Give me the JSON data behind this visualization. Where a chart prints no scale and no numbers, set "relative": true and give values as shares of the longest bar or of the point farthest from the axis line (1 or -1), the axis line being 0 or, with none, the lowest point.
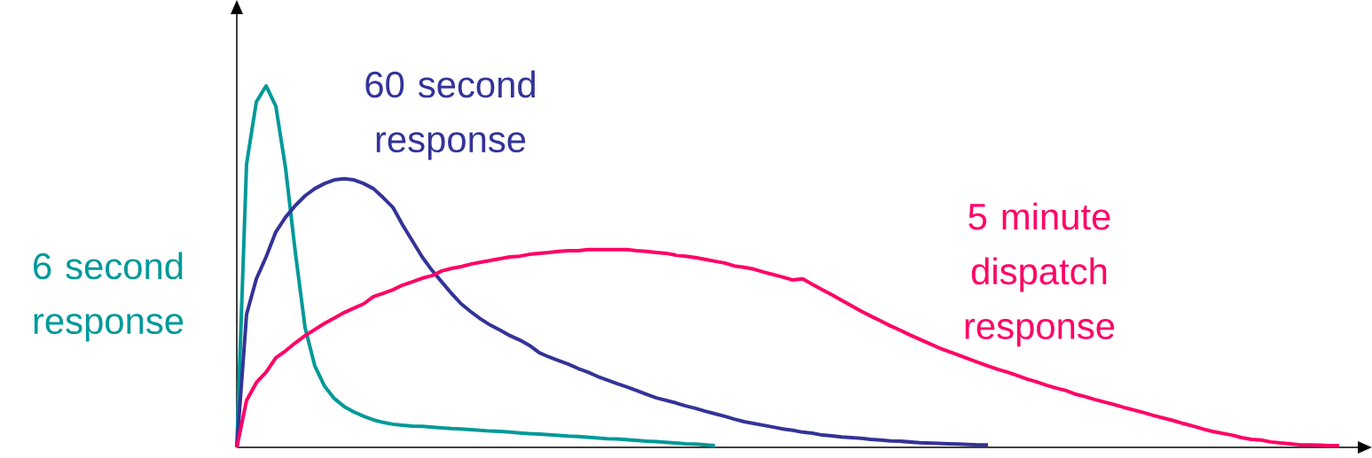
{
  "chart_data": {
    "type": "line",
    "relative": true,
    "categories": [
      null,
      null,
      null,
      null,
      null,
      null,
      null,
      null,
      null,
      null,
      null,
      null,
      null,
      null,
      null,
      null,
      null,
      null,
      null,
      null,
      null,
      null,
      null,
      null,
      null,
      null,
      null,
      null,
      null,
      null,
      null,
      null,
      null,
      null,
      null,
      null,
      null,
      null,
      null,
      null,
      null,
      null,
      null,
      null,
      null,
      null,
      null,
      null,
      null,
      null,
      null,
      null,
      null,
      null,
      null,
      null,
      null,
      null,
      null,
      null,
      null,
      null,
      null,
      null,
      null,
      null,
      null,
      null,
      null,
      null,
      null,
      null,
      null,
      null,
      null,
      null,
      null,
      null,
      null,
      null,
      null,
      null,
      null,
      null,
      null,
      null,
      null,
      null,
      null,
      null,
      null,
      null,
      null,
      null,
      null,
      null,
      null,
      null,
      null,
      null,
      null,
      null,
      null,
      null,
      null,
      null,
      null,
      null,
      null,
      null,
      null,
      null,
      null,
      null
    ],
    "series": [
      {
        "name": "6 second response",
        "color": "#009999",
        "values": [
          0,
          0.784,
          0.956,
          1,
          0.944,
          0.772,
          0.539,
          0.331,
          0.225,
          0.169,
          0.135,
          0.113,
          0.098,
          0.086,
          0.076,
          0.069,
          0.064,
          0.061,
          0.059,
          0.058,
          0.056,
          0.054,
          0.052,
          0.051,
          0.049,
          0.047,
          0.045,
          0.044,
          0.042,
          0.04,
          0.038,
          0.037,
          0.035,
          0.033,
          0.031,
          0.03,
          0.028,
          0.026,
          0.024,
          0.023,
          0.021,
          0.019,
          0.017,
          0.016,
          0.014,
          0.012,
          0.01,
          0.009,
          0.007,
          0.005,
          null,
          null,
          null,
          null,
          null,
          null,
          null,
          null,
          null,
          null,
          null,
          null,
          null,
          null,
          null,
          null,
          null,
          null,
          null,
          null,
          null,
          null,
          null,
          null,
          null,
          null,
          null,
          null,
          null,
          null,
          null,
          null,
          null,
          null,
          null,
          null,
          null,
          null,
          null,
          null,
          null,
          null,
          null,
          null,
          null,
          null,
          null,
          null,
          null,
          null,
          null,
          null,
          null,
          null,
          null,
          null,
          null,
          null,
          null,
          null,
          null,
          null,
          null,
          null
        ]
      },
      {
        "name": "60 second response",
        "color": "#333399",
        "values": [
          0,
          0.368,
          0.466,
          0.527,
          0.596,
          0.637,
          0.669,
          0.696,
          0.716,
          0.73,
          0.74,
          0.743,
          0.74,
          0.73,
          0.716,
          0.691,
          0.664,
          0.615,
          0.571,
          0.527,
          0.49,
          0.458,
          0.426,
          0.397,
          0.375,
          0.355,
          0.338,
          0.324,
          0.309,
          0.297,
          0.282,
          0.262,
          0.25,
          0.24,
          0.23,
          0.218,
          0.208,
          0.196,
          0.186,
          0.176,
          0.167,
          0.157,
          0.147,
          0.137,
          0.13,
          0.123,
          0.115,
          0.108,
          0.1,
          0.093,
          0.086,
          0.078,
          0.071,
          0.066,
          0.061,
          0.056,
          0.051,
          0.047,
          0.042,
          0.039,
          0.034,
          0.032,
          0.029,
          0.027,
          0.025,
          0.022,
          0.02,
          0.018,
          0.017,
          0.015,
          0.013,
          0.012,
          0.011,
          0.01,
          0.009,
          0.008,
          0.007,
          0.007,
          null,
          null,
          null,
          null,
          null,
          null,
          null,
          null,
          null,
          null,
          null,
          null,
          null,
          null,
          null,
          null,
          null,
          null,
          null,
          null,
          null,
          null,
          null,
          null,
          null,
          null,
          null,
          null,
          null,
          null,
          null,
          null,
          null,
          null,
          null,
          null
        ]
      },
      {
        "name": "5 minute dispatch response",
        "color": "#ff0066",
        "values": [
          0,
          0.13,
          0.179,
          0.208,
          0.248,
          0.267,
          0.289,
          0.309,
          0.326,
          0.343,
          0.358,
          0.373,
          0.385,
          0.397,
          0.417,
          0.426,
          0.436,
          0.449,
          0.458,
          0.468,
          0.475,
          0.488,
          0.495,
          0.5,
          0.507,
          0.512,
          0.517,
          0.522,
          0.527,
          0.529,
          0.534,
          0.537,
          0.539,
          0.542,
          0.544,
          0.544,
          0.547,
          0.547,
          0.547,
          0.547,
          0.547,
          0.544,
          0.542,
          0.539,
          0.537,
          0.532,
          0.529,
          0.525,
          0.52,
          0.515,
          0.51,
          0.502,
          0.498,
          0.493,
          0.485,
          0.478,
          0.471,
          0.463,
          0.466,
          0.451,
          0.436,
          0.422,
          0.407,
          0.392,
          0.377,
          0.363,
          0.35,
          0.336,
          0.324,
          0.311,
          0.299,
          0.287,
          0.275,
          0.265,
          0.255,
          0.245,
          0.235,
          0.225,
          0.216,
          0.208,
          0.199,
          0.189,
          0.181,
          0.172,
          0.164,
          0.157,
          0.147,
          0.14,
          0.132,
          0.125,
          0.118,
          0.11,
          0.103,
          0.096,
          0.088,
          0.081,
          0.074,
          0.066,
          0.059,
          0.051,
          0.044,
          0.039,
          0.034,
          0.027,
          0.022,
          0.02,
          0.015,
          0.012,
          0.01,
          0.007,
          0.007,
          0.006,
          0.005,
          0.005
        ]
      }
    ]
  }
}
